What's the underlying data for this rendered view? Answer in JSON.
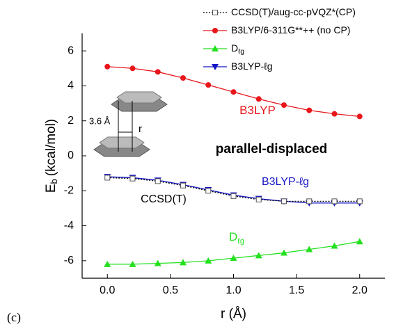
{
  "chart_data": {
    "type": "line",
    "x": [
      0,
      0.2,
      0.4,
      0.6,
      0.8,
      1.0,
      1.2,
      1.4,
      1.6,
      1.8,
      2.0
    ],
    "series": [
      {
        "name": "CCSD(T)/aug-cc-pVQZ*(CP)",
        "color": "#000000",
        "marker": "square-open",
        "dashed": true,
        "values": [
          -1.25,
          -1.3,
          -1.45,
          -1.7,
          -2.0,
          -2.3,
          -2.5,
          -2.6,
          -2.6,
          -2.6,
          -2.6
        ]
      },
      {
        "name": "B3LYP/6-311G**++ (no CP)",
        "color": "#e8161b",
        "marker": "circle",
        "dashed": false,
        "values": [
          5.1,
          5.0,
          4.8,
          4.45,
          4.05,
          3.65,
          3.25,
          2.9,
          2.6,
          2.4,
          2.25
        ]
      },
      {
        "name": "D",
        "name_subscript": "ℓg",
        "color": "#22e01e",
        "marker": "triangle",
        "dashed": false,
        "values": [
          -6.2,
          -6.2,
          -6.15,
          -6.1,
          -6.0,
          -5.85,
          -5.7,
          -5.55,
          -5.35,
          -5.15,
          -4.9
        ]
      },
      {
        "name": "B3LYP-ℓg",
        "color": "#1515c8",
        "marker": "triangle-down",
        "dashed": false,
        "values": [
          -1.2,
          -1.25,
          -1.4,
          -1.65,
          -1.95,
          -2.25,
          -2.45,
          -2.6,
          -2.7,
          -2.7,
          -2.7
        ]
      }
    ],
    "xlabel": "r (Å)",
    "ylabel": "E",
    "ylabel_subscript": "b",
    "ylabel_unit": "(kcal/mol)",
    "xlim": [
      -0.2,
      2.2
    ],
    "xticks": [
      {
        "value": 0,
        "label": "0.0"
      },
      {
        "value": 0.5,
        "label": "0.5"
      },
      {
        "value": 1,
        "label": "1.0"
      },
      {
        "value": 1.5,
        "label": "1.5"
      },
      {
        "value": 2,
        "label": "2.0"
      }
    ],
    "ylim": [
      -7,
      7
    ],
    "yticks": [
      -6,
      -4,
      -2,
      0,
      2,
      4,
      6
    ],
    "annotations": [
      {
        "text": "B3LYP",
        "color": "#e8161b"
      },
      {
        "text": "parallel-displaced",
        "color": "#000000"
      },
      {
        "text": "B3LYP-ℓg",
        "color": "#1515c8"
      },
      {
        "text": "CCSD(T)",
        "color": "#000000"
      },
      {
        "text": "D",
        "subscript": "ℓg",
        "color": "#22e01e"
      }
    ],
    "inset": {
      "distance_label": "3.6 Å",
      "offset_label": "r"
    },
    "panel_label": "(c)"
  }
}
